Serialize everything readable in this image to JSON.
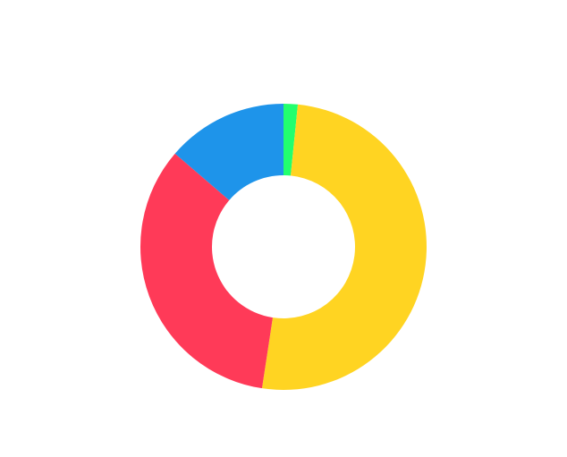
{
  "chart_data": {
    "type": "doughnut",
    "values": [
      1.6,
      50.8,
      33.9,
      13.7
    ],
    "colors": [
      "#22ff6e",
      "#ffd422",
      "#ff3a58",
      "#1e94ea"
    ]
  }
}
